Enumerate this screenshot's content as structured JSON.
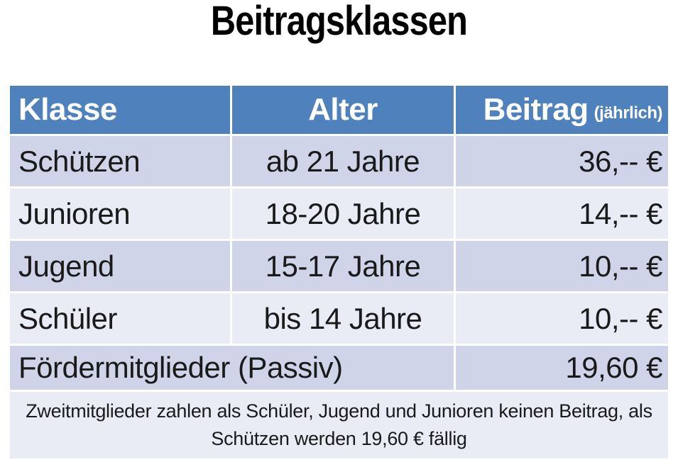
{
  "title": "Beitragsklassen",
  "table": {
    "headers": [
      {
        "label": "Klasse"
      },
      {
        "label": "Alter"
      },
      {
        "label": "Beitrag",
        "suffix": "(jährlich)"
      }
    ],
    "rows": [
      {
        "klasse": "Schützen",
        "alter": "ab 21 Jahre",
        "beitrag": "36,-- €"
      },
      {
        "klasse": "Junioren",
        "alter": "18-20 Jahre",
        "beitrag": "14,-- €"
      },
      {
        "klasse": "Jugend",
        "alter": "15-17 Jahre",
        "beitrag": "10,-- €"
      },
      {
        "klasse": "Schüler",
        "alter": "bis 14 Jahre",
        "beitrag": "10,-- €"
      },
      {
        "klasse": "Fördermitglieder (Passiv)",
        "alter": "",
        "beitrag": "19,60 €"
      }
    ],
    "footer_note": "Zweitmitglieder zahlen als Schüler, Jugend und Junioren keinen Beitrag, als Schützen werden 19,60 € fällig"
  },
  "colors": {
    "header_bg": "#4F81BD",
    "header_text": "#FFFFFF",
    "band_dark": "#CFD4E8",
    "band_light": "#E9EBF5",
    "body_text": "#1A1A1A",
    "page_bg": "#FFFFFF"
  }
}
